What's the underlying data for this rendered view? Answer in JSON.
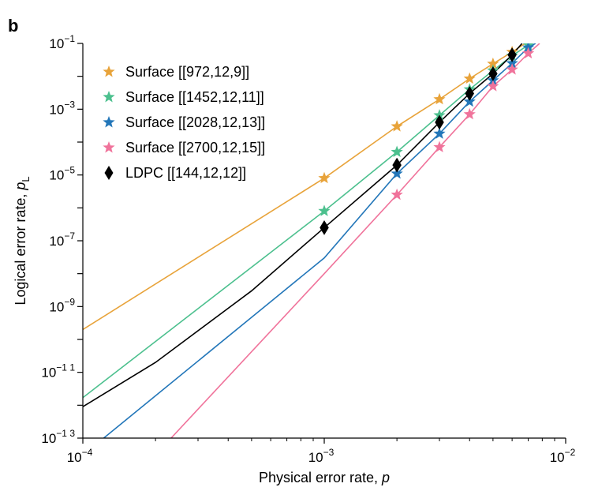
{
  "panel_label": "b",
  "colors": {
    "surface_d9": "#E8A33A",
    "surface_d11": "#4CC08E",
    "surface_d13": "#2276B9",
    "surface_d15": "#F0739B",
    "ldpc": "#000000"
  },
  "chart_data": {
    "type": "line",
    "xlabel": "Physical error rate, ",
    "xlabel_var": "p",
    "ylabel": "Logical error rate, ",
    "ylabel_var": "p",
    "ylabel_sub": "L",
    "xscale": "log",
    "yscale": "log",
    "xlim": [
      0.0001,
      0.01
    ],
    "ylim": [
      1e-13,
      0.1
    ],
    "grid": false,
    "legend_position": "top-left",
    "x_ticks": [
      {
        "value": 0.0001,
        "base": "10",
        "exp": "−4"
      },
      {
        "value": 0.001,
        "base": "10",
        "exp": "−3"
      },
      {
        "value": 0.01,
        "base": "10",
        "exp": "−2"
      }
    ],
    "y_ticks": [
      {
        "value": 1e-13,
        "base": "10",
        "exp": "−1 3"
      },
      {
        "value": 1e-11,
        "base": "10",
        "exp": "−1 1"
      },
      {
        "value": 1e-09,
        "base": "10",
        "exp": "−9"
      },
      {
        "value": 1e-07,
        "base": "10",
        "exp": "−7"
      },
      {
        "value": 1e-05,
        "base": "10",
        "exp": "−5"
      },
      {
        "value": 0.001,
        "base": "10",
        "exp": "−3"
      },
      {
        "value": 0.1,
        "base": "10",
        "exp": "−1"
      }
    ],
    "series": [
      {
        "name": "Surface [[972,12,9]]",
        "key": "surface_d9",
        "marker": "star",
        "points": [
          [
            0.001,
            8e-06
          ],
          [
            0.002,
            0.0003
          ],
          [
            0.003,
            0.002
          ],
          [
            0.004,
            0.0085
          ],
          [
            0.005,
            0.024
          ],
          [
            0.006,
            0.055
          ]
        ],
        "fit": [
          [
            0.0001,
            2e-10
          ],
          [
            0.001,
            8e-06
          ],
          [
            0.002,
            0.0003
          ],
          [
            0.003,
            0.002
          ],
          [
            0.004,
            0.0085
          ],
          [
            0.005,
            0.024
          ],
          [
            0.006,
            0.055
          ],
          [
            0.0068,
            0.1
          ]
        ]
      },
      {
        "name": "Surface [[1452,12,11]]",
        "key": "surface_d11",
        "marker": "star",
        "points": [
          [
            0.001,
            8e-07
          ],
          [
            0.002,
            5e-05
          ],
          [
            0.003,
            0.00065
          ],
          [
            0.004,
            0.004
          ],
          [
            0.005,
            0.015
          ],
          [
            0.006,
            0.042
          ],
          [
            0.007,
            0.09
          ]
        ],
        "fit": [
          [
            0.0001,
            1.7e-12
          ],
          [
            0.001,
            8e-07
          ],
          [
            0.002,
            5e-05
          ],
          [
            0.003,
            0.00065
          ],
          [
            0.004,
            0.004
          ],
          [
            0.005,
            0.015
          ],
          [
            0.006,
            0.042
          ],
          [
            0.007,
            0.09
          ],
          [
            0.0072,
            0.1
          ]
        ]
      },
      {
        "name": "Surface [[2028,12,13]]",
        "key": "surface_d13",
        "marker": "star",
        "points": [
          [
            0.002,
            1.1e-05
          ],
          [
            0.003,
            0.00018
          ],
          [
            0.004,
            0.0017
          ],
          [
            0.005,
            0.0075
          ],
          [
            0.006,
            0.025
          ],
          [
            0.007,
            0.075
          ]
        ],
        "fit": [
          [
            0.000122,
            1e-13
          ],
          [
            0.001,
            3e-08
          ],
          [
            0.002,
            1.1e-05
          ],
          [
            0.003,
            0.00018
          ],
          [
            0.004,
            0.0017
          ],
          [
            0.005,
            0.0075
          ],
          [
            0.006,
            0.025
          ],
          [
            0.007,
            0.075
          ],
          [
            0.0075,
            0.1
          ]
        ]
      },
      {
        "name": "Surface [[2700,12,15]]",
        "key": "surface_d15",
        "marker": "star",
        "points": [
          [
            0.002,
            2.5e-06
          ],
          [
            0.003,
            7e-05
          ],
          [
            0.004,
            0.0007
          ],
          [
            0.005,
            0.005
          ],
          [
            0.006,
            0.016
          ],
          [
            0.007,
            0.05
          ]
        ],
        "fit": [
          [
            0.000232,
            1e-13
          ],
          [
            0.001,
            1e-08
          ],
          [
            0.002,
            2.5e-06
          ],
          [
            0.003,
            7e-05
          ],
          [
            0.004,
            0.0007
          ],
          [
            0.005,
            0.005
          ],
          [
            0.006,
            0.016
          ],
          [
            0.007,
            0.05
          ],
          [
            0.0078,
            0.1
          ]
        ]
      },
      {
        "name": "LDPC [[144,12,12]]",
        "key": "ldpc",
        "marker": "diamond",
        "points": [
          [
            0.001,
            2.5e-07
          ],
          [
            0.002,
            2e-05
          ],
          [
            0.003,
            0.0004
          ],
          [
            0.004,
            0.003
          ],
          [
            0.005,
            0.012
          ],
          [
            0.006,
            0.045
          ]
        ],
        "fit": [
          [
            0.0001,
            9e-13
          ],
          [
            0.0002,
            2e-11
          ],
          [
            0.0005,
            3e-09
          ],
          [
            0.001,
            2.5e-07
          ],
          [
            0.002,
            2e-05
          ],
          [
            0.003,
            0.0004
          ],
          [
            0.004,
            0.003
          ],
          [
            0.005,
            0.012
          ],
          [
            0.006,
            0.045
          ],
          [
            0.0066,
            0.1
          ]
        ]
      }
    ]
  }
}
